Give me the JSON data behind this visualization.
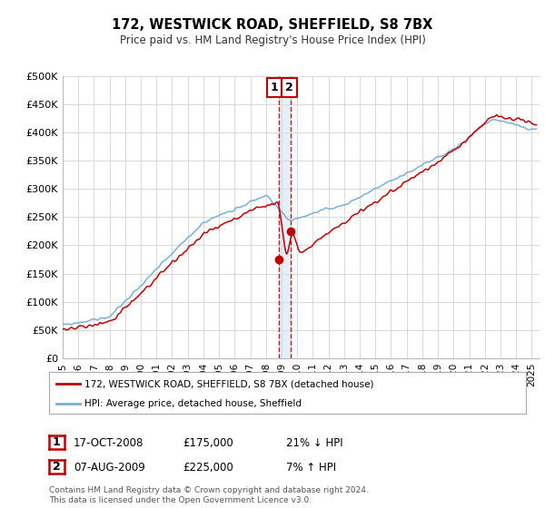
{
  "title": "172, WESTWICK ROAD, SHEFFIELD, S8 7BX",
  "subtitle": "Price paid vs. HM Land Registry's House Price Index (HPI)",
  "ylabel_ticks": [
    "£0",
    "£50K",
    "£100K",
    "£150K",
    "£200K",
    "£250K",
    "£300K",
    "£350K",
    "£400K",
    "£450K",
    "£500K"
  ],
  "ytick_values": [
    0,
    50000,
    100000,
    150000,
    200000,
    250000,
    300000,
    350000,
    400000,
    450000,
    500000
  ],
  "xlim_start": 1995.0,
  "xlim_end": 2025.5,
  "ylim": [
    0,
    500000
  ],
  "hpi_color": "#7bafd4",
  "price_color": "#c00000",
  "dashed_line_color": "#cc0000",
  "transaction1_x": 2008.8,
  "transaction1_y": 175000,
  "transaction2_x": 2009.6,
  "transaction2_y": 225000,
  "legend_line1": "172, WESTWICK ROAD, SHEFFIELD, S8 7BX (detached house)",
  "legend_line2": "HPI: Average price, detached house, Sheffield",
  "table_row1": [
    "1",
    "17-OCT-2008",
    "£175,000",
    "21% ↓ HPI"
  ],
  "table_row2": [
    "2",
    "07-AUG-2009",
    "£225,000",
    "7% ↑ HPI"
  ],
  "footer": "Contains HM Land Registry data © Crown copyright and database right 2024.\nThis data is licensed under the Open Government Licence v3.0.",
  "background_color": "#ffffff",
  "grid_color": "#d8d8d8"
}
